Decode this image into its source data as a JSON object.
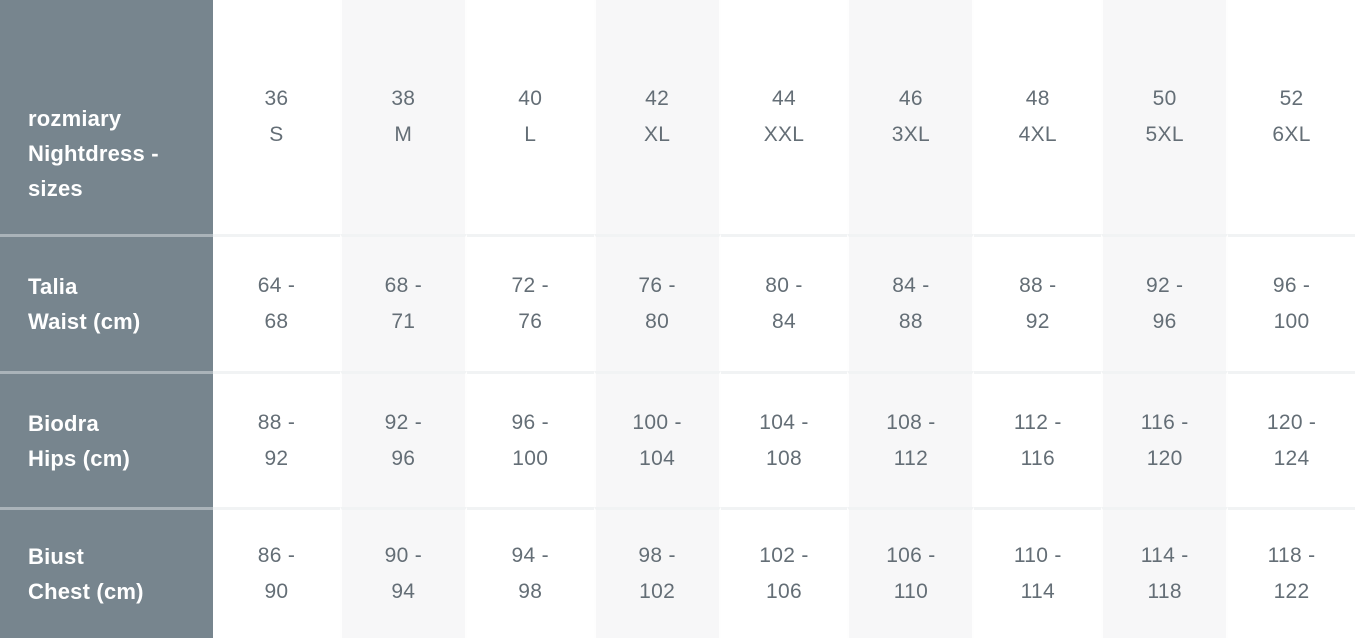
{
  "chart_data": {
    "type": "table",
    "title": "rozmiary Nightdress - sizes",
    "title_lines": [
      "rozmiary",
      "Nightdress -",
      "sizes"
    ],
    "columns": [
      "36 S",
      "38 M",
      "40 L",
      "42 XL",
      "44 XXL",
      "46 3XL",
      "48 4XL",
      "50 5XL",
      "52 6XL"
    ],
    "rows": [
      {
        "label": "Talia Waist (cm)",
        "label_lines": [
          "Talia",
          "Waist (cm)"
        ],
        "values": [
          "64 - 68",
          "68 - 71",
          "72 - 76",
          "76 - 80",
          "80 - 84",
          "84 - 88",
          "88 - 92",
          "92 - 96",
          "96 - 100"
        ]
      },
      {
        "label": "Biodra Hips (cm)",
        "label_lines": [
          "Biodra",
          "Hips (cm)"
        ],
        "values": [
          "88 - 92",
          "92 - 96",
          "96 - 100",
          "100 - 104",
          "104 - 108",
          "108 - 112",
          "112 - 116",
          "116 - 120",
          "120 - 124"
        ]
      },
      {
        "label": "Biust Chest (cm)",
        "label_lines": [
          "Biust",
          "Chest (cm)"
        ],
        "values": [
          "86 - 90",
          "90 - 94",
          "94 - 98",
          "98 - 102",
          "102 - 106",
          "106 - 110",
          "110 - 114",
          "114 - 118",
          "118 - 122"
        ]
      }
    ],
    "layout_hints": {
      "label_column_position": "left",
      "column_backgrounds_alternate": true,
      "units": "cm"
    }
  },
  "colors": {
    "label_column_bg": "#77858E",
    "stripe_column_bg": "#F7F7F8",
    "plain_column_bg": "#FFFFFF",
    "label_text": "#FFFFFF",
    "data_text": "#646E76",
    "row_divider_on_gray": "rgba(255,255,255,0.38)",
    "row_divider_on_light": "#F1F3F4"
  }
}
